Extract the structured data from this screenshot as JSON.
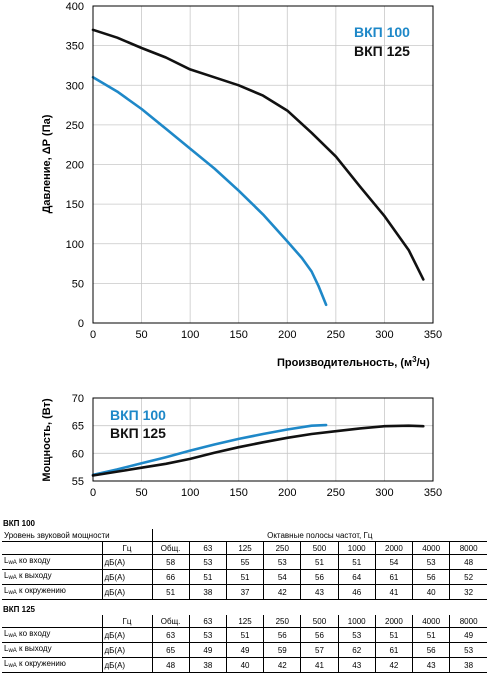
{
  "chart_data": [
    {
      "type": "line",
      "xlabel": "Производительность, (м",
      "xlabel_sup": "3",
      "xlabel_end": "/ч)",
      "ylabel": "Давление, ΔР (Па)",
      "xlim": [
        0,
        350
      ],
      "ylim": [
        0,
        400
      ],
      "xticks": [
        "0",
        "50",
        "100",
        "150",
        "200",
        "250",
        "300",
        "350"
      ],
      "yticks": [
        "0",
        "50",
        "100",
        "150",
        "200",
        "250",
        "300",
        "350",
        "400"
      ],
      "grid": true,
      "legend": "top-right",
      "series": [
        {
          "name": "ВКП 100",
          "color": "#1e88c8",
          "x": [
            0,
            25,
            50,
            75,
            100,
            125,
            150,
            175,
            200,
            215,
            225,
            232,
            240
          ],
          "y": [
            310,
            292,
            270,
            245,
            220,
            195,
            167,
            137,
            103,
            82,
            65,
            47,
            23
          ]
        },
        {
          "name": "ВКП 125",
          "color": "#111111",
          "x": [
            0,
            25,
            50,
            75,
            100,
            125,
            150,
            175,
            200,
            225,
            250,
            275,
            300,
            325,
            340
          ],
          "y": [
            370,
            360,
            347,
            335,
            320,
            310,
            300,
            287,
            268,
            240,
            210,
            172,
            135,
            92,
            55
          ]
        }
      ]
    },
    {
      "type": "line",
      "ylabel": "Мощность, (Вт)",
      "xlim": [
        0,
        350
      ],
      "ylim": [
        55,
        70
      ],
      "xticks": [
        "0",
        "50",
        "100",
        "150",
        "200",
        "250",
        "300",
        "350"
      ],
      "yticks": [
        "55",
        "60",
        "65",
        "70"
      ],
      "grid": true,
      "legend": "top-left",
      "series": [
        {
          "name": "ВКП 100",
          "color": "#1e88c8",
          "x": [
            0,
            25,
            50,
            75,
            100,
            125,
            150,
            175,
            200,
            225,
            240
          ],
          "y": [
            56.1,
            57.1,
            58.2,
            59.3,
            60.5,
            61.6,
            62.6,
            63.5,
            64.3,
            65.0,
            65.1
          ]
        },
        {
          "name": "ВКП 125",
          "color": "#111111",
          "x": [
            0,
            25,
            50,
            75,
            100,
            125,
            150,
            175,
            200,
            225,
            250,
            275,
            300,
            325,
            340
          ],
          "y": [
            56.0,
            56.7,
            57.4,
            58.1,
            59.0,
            60.1,
            61.1,
            62.0,
            62.8,
            63.5,
            64.0,
            64.5,
            64.9,
            65.0,
            64.9
          ]
        }
      ]
    }
  ],
  "tables": {
    "vkp100": {
      "title": "ВКП 100",
      "header_left": "Уровень звуковой мощности",
      "header_bands": "Октавные полосы частот, Гц",
      "unit_hz": "Гц",
      "columns": [
        "Общ.",
        "63",
        "125",
        "250",
        "500",
        "1000",
        "2000",
        "4000",
        "8000"
      ],
      "rows": [
        {
          "label_l": "L",
          "label_sub": "wA",
          "label_rest": " ко входу",
          "unit": "дБ(А)",
          "values": [
            "58",
            "53",
            "55",
            "53",
            "51",
            "51",
            "54",
            "53",
            "48"
          ]
        },
        {
          "label_l": "L",
          "label_sub": "wA",
          "label_rest": " к выходу",
          "unit": "дБ(А)",
          "values": [
            "66",
            "51",
            "51",
            "54",
            "56",
            "64",
            "61",
            "56",
            "52"
          ]
        },
        {
          "label_l": "L",
          "label_sub": "wA",
          "label_rest": " к окружению",
          "unit": "дБ(А)",
          "values": [
            "51",
            "38",
            "37",
            "42",
            "43",
            "46",
            "41",
            "40",
            "32"
          ]
        }
      ]
    },
    "vkp125": {
      "title": "ВКП 125",
      "unit_hz": "Гц",
      "columns": [
        "Общ.",
        "63",
        "125",
        "250",
        "500",
        "1000",
        "2000",
        "4000",
        "8000"
      ],
      "rows": [
        {
          "label_l": "L",
          "label_sub": "wA",
          "label_rest": " ко входу",
          "unit": "дБ(А)",
          "values": [
            "63",
            "53",
            "51",
            "56",
            "56",
            "53",
            "51",
            "51",
            "49"
          ]
        },
        {
          "label_l": "L",
          "label_sub": "wA",
          "label_rest": " к выходу",
          "unit": "дБ(А)",
          "values": [
            "65",
            "49",
            "49",
            "59",
            "57",
            "62",
            "61",
            "56",
            "53"
          ]
        },
        {
          "label_l": "L",
          "label_sub": "wA",
          "label_rest": " к окружению",
          "unit": "дБ(А)",
          "values": [
            "48",
            "38",
            "40",
            "42",
            "41",
            "43",
            "42",
            "43",
            "38"
          ]
        }
      ]
    }
  }
}
